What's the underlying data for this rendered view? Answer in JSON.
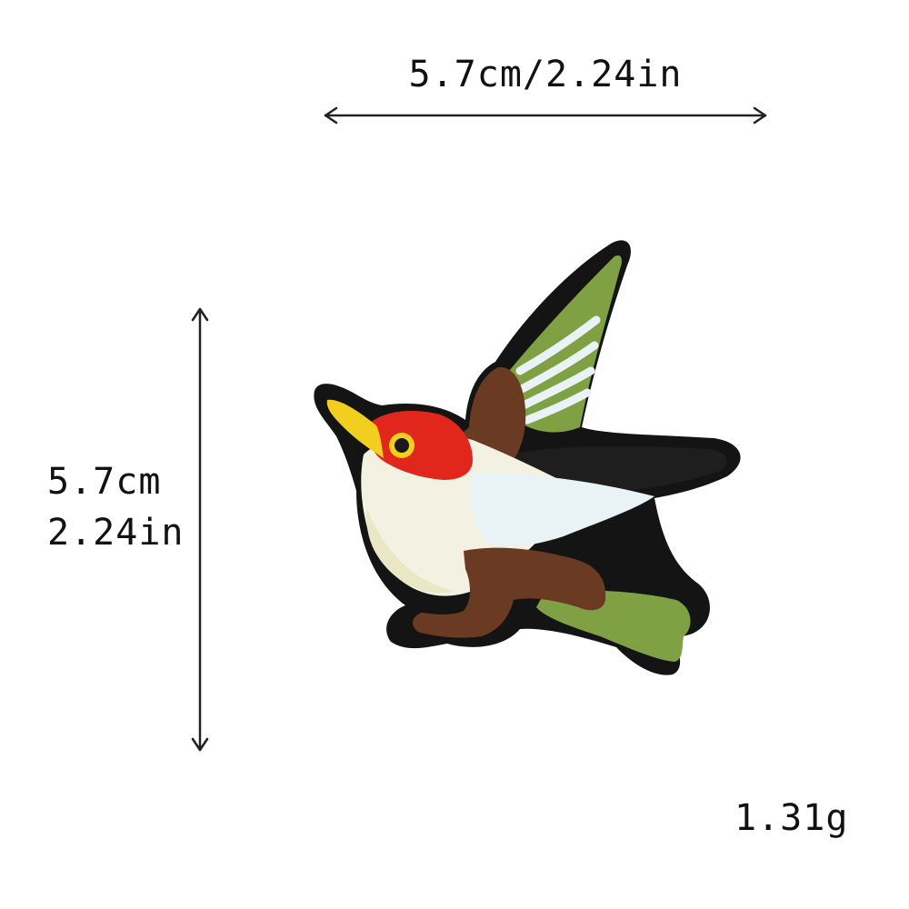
{
  "dimensions": {
    "width_label": "5.7cm/2.24in",
    "height_label_cm": "5.7cm",
    "height_label_in": "2.24in"
  },
  "weight_label": "1.31g",
  "colors": {
    "outline": "#141414",
    "beak": "#f2cf1f",
    "head": "#e1261c",
    "eye_ring": "#f2cf1f",
    "body_white": "#f3f1e2",
    "body_cream": "#eae7c4",
    "brown": "#6b3a22",
    "green": "#7fa043",
    "wing_white": "#e9f3f5",
    "arrow": "#222222"
  }
}
